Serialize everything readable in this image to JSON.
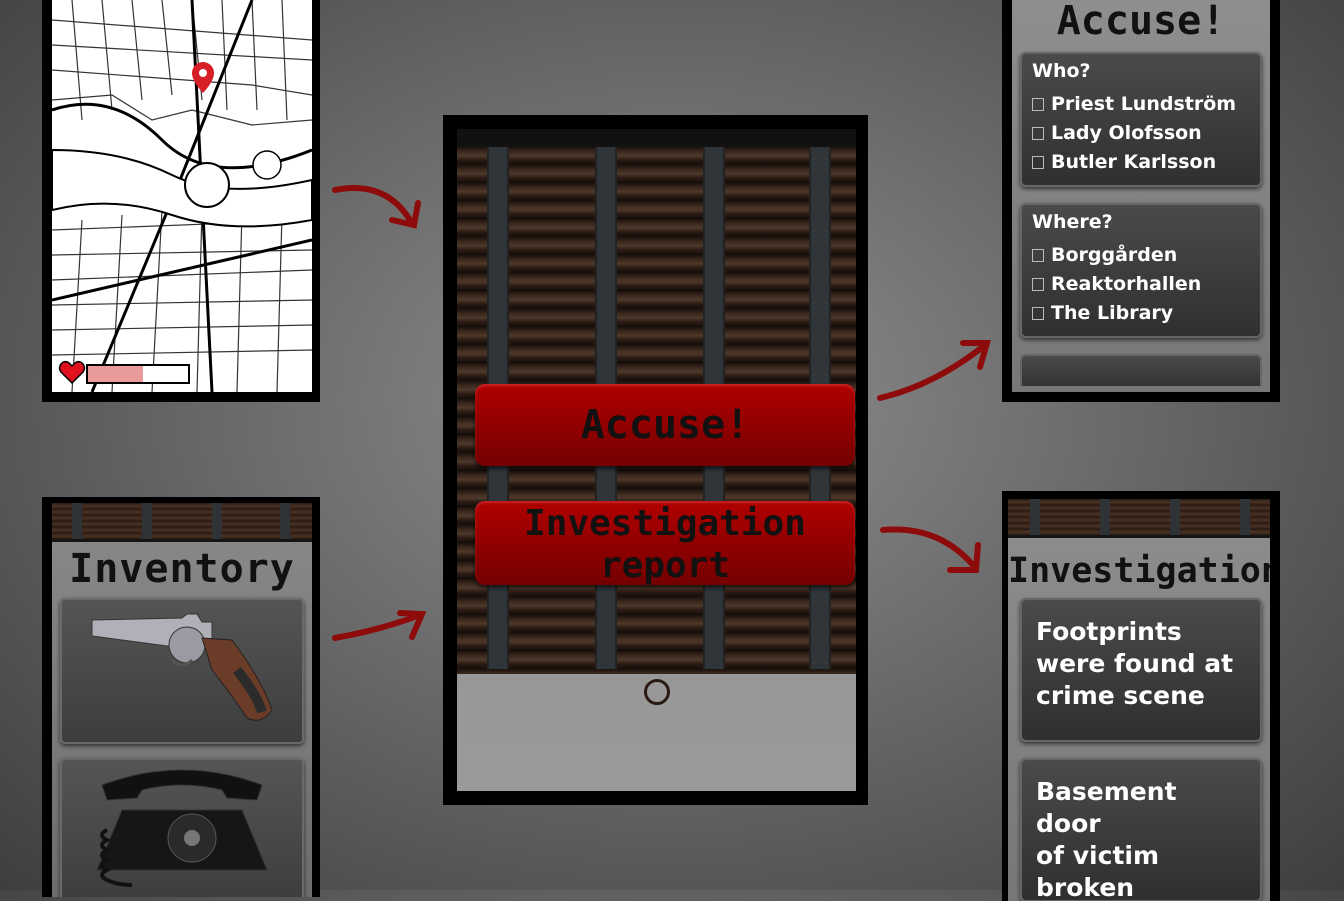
{
  "colors": {
    "accent_red": "#9b0000",
    "arrow_red": "#8e0b0b",
    "map_pin": "#d61f26",
    "heart": "#e0101e"
  },
  "map_screen": {
    "pin_icon": "map-pin-icon",
    "health": {
      "icon": "heart-icon",
      "level_percent": 55
    }
  },
  "inventory": {
    "title": "Inventory",
    "items": [
      {
        "icon": "revolver-icon"
      },
      {
        "icon": "rotary-phone-icon"
      }
    ]
  },
  "main_menu": {
    "accuse_label": "Accuse!",
    "report_label_line1": "Investigation",
    "report_label_line2": "report"
  },
  "accuse_screen": {
    "title": "Accuse!",
    "who": {
      "title": "Who?",
      "options": [
        "Priest Lundström",
        "Lady Olofsson",
        "Butler Karlsson"
      ]
    },
    "where": {
      "title": "Where?",
      "options": [
        "Borggården",
        "Reaktorhallen",
        "The Library"
      ]
    }
  },
  "investigation_screen": {
    "title": "Investigation",
    "notes": [
      {
        "line1": "Footprints",
        "line2": "were found at",
        "line3": "crime scene"
      },
      {
        "line1": "Basement door",
        "line2": "of victim",
        "line3": "broken"
      }
    ]
  }
}
